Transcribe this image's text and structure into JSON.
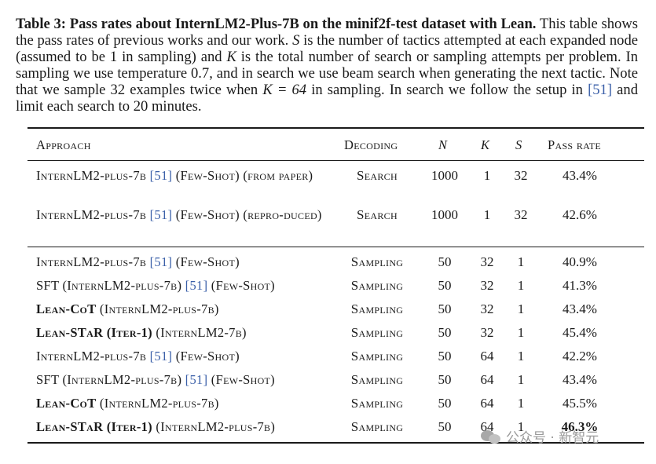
{
  "caption": {
    "label": "Table 3:",
    "bold_title": "Pass rates about InternLM2-Plus-7B on the minif2f-test dataset with Lean.",
    "part1": " This table shows the pass rates of previous works and our work. ",
    "s_var": "S",
    "part2": " is the number of tactics attempted at each expanded node (assumed to be 1 in sampling) and ",
    "k_var": "K",
    "part3": " is the total number of search or sampling attempts per problem. In sampling we use temperature 0.7, and in search we use beam search when generating the next tactic. Note that we sample 32 examples twice when ",
    "k_eq": "K = 64",
    "part4": " in sampling. In search we follow the setup in ",
    "cite": "[51]",
    "part5": " and limit each search to 20 minutes."
  },
  "table": {
    "headers": {
      "approach": "Approach",
      "decoding": "Decoding",
      "n": "N",
      "k": "K",
      "s": "S",
      "pass_rate": "Pass rate"
    },
    "rows": [
      {
        "pre": "",
        "bold": "",
        "main": "InternLM2-plus-7b ",
        "cite": "[51]",
        "post": " (Few-Shot) (from paper)",
        "decoding": "Search",
        "n": "1000",
        "k": "1",
        "s": "32",
        "pass_rate": "43.4%"
      },
      {
        "pre": "",
        "bold": "",
        "main": "InternLM2-plus-7b ",
        "cite": "[51]",
        "post": " (Few-Shot) (repro-duced)",
        "decoding": "Search",
        "n": "1000",
        "k": "1",
        "s": "32",
        "pass_rate": "42.6%"
      },
      {
        "pre": "",
        "bold": "",
        "main": "InternLM2-plus-7b ",
        "cite": "[51]",
        "post": " (Few-Shot)",
        "decoding": "Sampling",
        "n": "50",
        "k": "32",
        "s": "1",
        "pass_rate": "40.9%"
      },
      {
        "pre": "SFT (",
        "bold": "",
        "main": "InternLM2-plus-7b) ",
        "cite": "[51]",
        "post": " (Few-Shot)",
        "decoding": "Sampling",
        "n": "50",
        "k": "32",
        "s": "1",
        "pass_rate": "41.3%"
      },
      {
        "pre": "",
        "bold": "Lean-CoT",
        "main": " (InternLM2-plus-7b)",
        "cite": "",
        "post": "",
        "decoding": "Sampling",
        "n": "50",
        "k": "32",
        "s": "1",
        "pass_rate": "43.4%"
      },
      {
        "pre": "",
        "bold": "Lean-STaR (Iter-1)",
        "main": " (InternLM2-7b)",
        "cite": "",
        "post": "",
        "decoding": "Sampling",
        "n": "50",
        "k": "32",
        "s": "1",
        "pass_rate": "45.4%"
      },
      {
        "pre": "",
        "bold": "",
        "main": "InternLM2-plus-7b ",
        "cite": "[51]",
        "post": " (Few-Shot)",
        "decoding": "Sampling",
        "n": "50",
        "k": "64",
        "s": "1",
        "pass_rate": "42.2%"
      },
      {
        "pre": "SFT (",
        "bold": "",
        "main": "InternLM2-plus-7b) ",
        "cite": "[51]",
        "post": " (Few-Shot)",
        "decoding": "Sampling",
        "n": "50",
        "k": "64",
        "s": "1",
        "pass_rate": "43.4%"
      },
      {
        "pre": "",
        "bold": "Lean-CoT",
        "main": " (InternLM2-plus-7b)",
        "cite": "",
        "post": "",
        "decoding": "Sampling",
        "n": "50",
        "k": "64",
        "s": "1",
        "pass_rate": "45.5%"
      },
      {
        "pre": "",
        "bold": "Lean-STaR (Iter-1)",
        "main": " (InternLM2-plus-7b)",
        "cite": "",
        "post": "",
        "decoding": "Sampling",
        "n": "50",
        "k": "64",
        "s": "1",
        "pass_rate": "46.3%"
      }
    ]
  },
  "watermark": {
    "text": "公众号 · 新智元"
  }
}
